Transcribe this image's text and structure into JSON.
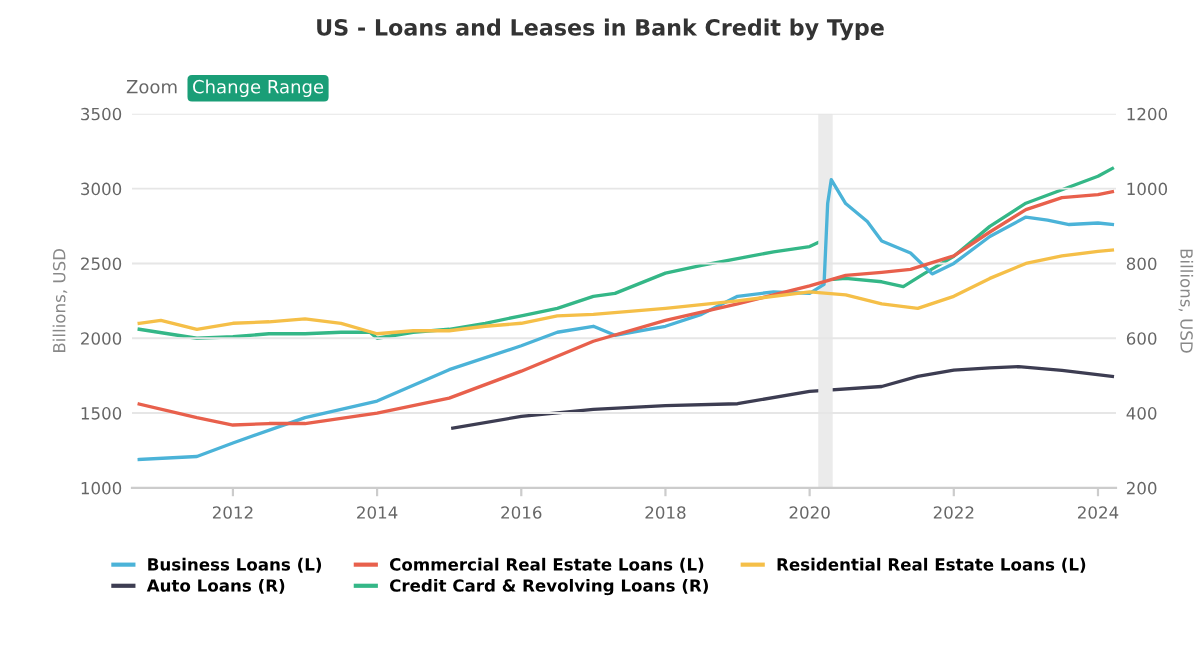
{
  "chart_data": {
    "type": "line",
    "title": "US - Loans and Leases in Bank Credit by Type",
    "ylabel": "Billions, USD",
    "y2label": "Billions, USD",
    "annotations": [
      "Zoom",
      "Change Range"
    ],
    "xlim": [
      2010.6,
      2024.25
    ],
    "xticks": [
      2012,
      2014,
      2016,
      2018,
      2020,
      2022,
      2024
    ],
    "ylim": [
      1000,
      3500
    ],
    "yticks": [
      1000,
      1500,
      2000,
      2500,
      3000,
      3500
    ],
    "y2lim": [
      200,
      1200
    ],
    "y2ticks": [
      200,
      400,
      600,
      800,
      1000,
      1200
    ],
    "grid": "y",
    "legend": "bottom",
    "marker": "none",
    "line_style": "solid",
    "bands": [
      {
        "axis": "x",
        "from": 2020.12,
        "to": 2020.32,
        "color": "#ebebeb"
      }
    ],
    "series": [
      {
        "name": "Business Loans (L)",
        "color": "#4bb3d8",
        "x": [
          2010.7,
          2011.5,
          2012,
          2013,
          2014,
          2015,
          2016,
          2016.5,
          2017,
          2017.3,
          2018,
          2018.5,
          2019,
          2019.5,
          2020,
          2020.2,
          2020.25,
          2020.3,
          2020.5,
          2020.8,
          2021,
          2021.4,
          2021.7,
          2022,
          2022.5,
          2023,
          2023.3,
          2023.6,
          2024,
          2024.2
        ],
        "values": [
          1190,
          1210,
          1300,
          1470,
          1580,
          1790,
          1950,
          2040,
          2080,
          2020,
          2080,
          2160,
          2280,
          2310,
          2300,
          2360,
          2900,
          3060,
          2900,
          2780,
          2650,
          2570,
          2430,
          2500,
          2680,
          2810,
          2790,
          2760,
          2770,
          2760
        ]
      },
      {
        "name": "Commercial Real Estate Loans (L)",
        "color": "#e8604c",
        "x": [
          2010.7,
          2011.5,
          2012,
          2012.5,
          2013,
          2014,
          2015,
          2016,
          2017,
          2018,
          2019,
          2020,
          2020.5,
          2021,
          2021.4,
          2022,
          2022.5,
          2023,
          2023.5,
          2024,
          2024.2
        ],
        "values": [
          1560,
          1470,
          1420,
          1430,
          1430,
          1500,
          1600,
          1780,
          1980,
          2120,
          2230,
          2350,
          2420,
          2440,
          2460,
          2550,
          2710,
          2860,
          2940,
          2960,
          2980
        ]
      },
      {
        "name": "Residential Real Estate Loans (L)",
        "color": "#f5bf48",
        "x": [
          2010.7,
          2011,
          2011.5,
          2012,
          2012.5,
          2013,
          2013.5,
          2014,
          2014.5,
          2015,
          2015.5,
          2016,
          2016.5,
          2017,
          2018,
          2019,
          2020,
          2020.5,
          2021,
          2021.5,
          2022,
          2022.5,
          2023,
          2023.5,
          2024,
          2024.2
        ],
        "values": [
          2100,
          2120,
          2060,
          2100,
          2110,
          2130,
          2100,
          2030,
          2050,
          2050,
          2080,
          2100,
          2150,
          2160,
          2200,
          2250,
          2310,
          2290,
          2230,
          2200,
          2280,
          2400,
          2500,
          2550,
          2580,
          2590
        ]
      },
      {
        "name": "Auto Loans (R)",
        "color": "#3d3d52",
        "axis": "y2",
        "x": [
          2015.05,
          2016,
          2017,
          2018,
          2019,
          2020,
          2021,
          2021.5,
          2022,
          2022.5,
          2022.9,
          2023.5,
          2024.2
        ],
        "values": [
          360,
          391,
          410,
          420,
          425,
          458,
          471,
          498,
          515,
          521,
          524,
          514,
          498
        ]
      },
      {
        "name": "Credit Card & Revolving Loans (R)",
        "color": "#34b787",
        "axis": "y2",
        "x": [
          2010.7,
          2011.5,
          2012,
          2012.5,
          2013,
          2013.5,
          2013.9,
          2014,
          2014.5,
          2015,
          2015.5,
          2016,
          2016.5,
          2017,
          2017.3,
          2018,
          2018.5,
          2019,
          2019.5,
          2020,
          2020.2,
          2020.25,
          2020.5,
          2021,
          2021.3,
          2021.6,
          2022,
          2022.5,
          2023,
          2023.5,
          2024,
          2024.2
        ],
        "values": [
          624,
          600,
          604,
          612,
          612,
          616,
          616,
          600,
          616,
          624,
          640,
          660,
          680,
          712,
          720,
          774,
          795,
          813,
          831,
          845,
          863,
          756,
          760,
          751,
          738,
          774,
          819,
          899,
          961,
          997,
          1033,
          1054
        ]
      }
    ]
  }
}
